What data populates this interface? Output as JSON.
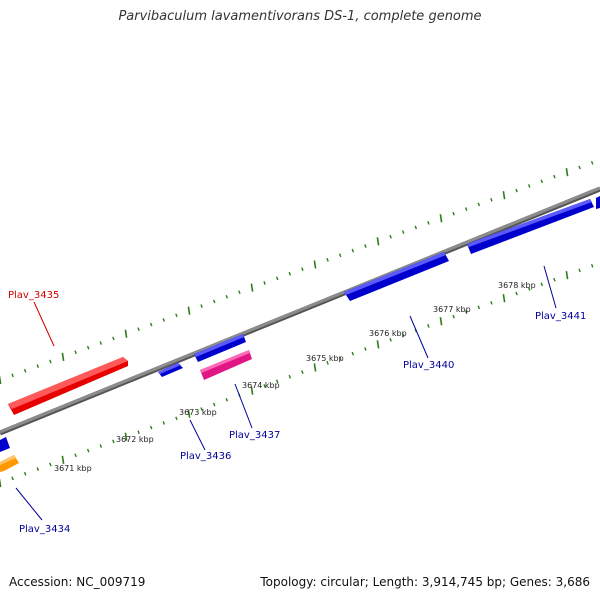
{
  "title": "Parvibaculum lavamentivorans DS-1, complete genome",
  "footer": {
    "accession": "Accession: NC_009719",
    "summary": "Topology: circular; Length: 3,914,745 bp; Genes: 3,686"
  },
  "colors": {
    "backbone": "#8c8c8c",
    "tick": "#2e7d1a",
    "forward_gene": "#ff0000",
    "reverse_gene": "#0000ff",
    "other_gene": "#ff9900",
    "highlight_gene": "#ff1493",
    "forward_label": "#cc0000",
    "reverse_label": "#000099"
  },
  "scale_labels": [
    {
      "text": "3671 kbp",
      "kbp": 3671
    },
    {
      "text": "3672 kbp",
      "kbp": 3672
    },
    {
      "text": "3673 kbp",
      "kbp": 3673
    },
    {
      "text": "3674 kbp",
      "kbp": 3674
    },
    {
      "text": "3675 kbp",
      "kbp": 3675
    },
    {
      "text": "3676 kbp",
      "kbp": 3676
    },
    {
      "text": "3677 kbp",
      "kbp": 3677
    },
    {
      "text": "3678 kbp",
      "kbp": 3678
    }
  ],
  "gene_labels": [
    {
      "text": "Plav_3435",
      "strand": "forward"
    },
    {
      "text": "Plav_3434",
      "strand": "reverse"
    },
    {
      "text": "Plav_3436",
      "strand": "reverse"
    },
    {
      "text": "Plav_3437",
      "strand": "reverse"
    },
    {
      "text": "Plav_3440",
      "strand": "reverse"
    },
    {
      "text": "Plav_3441",
      "strand": "reverse"
    }
  ]
}
